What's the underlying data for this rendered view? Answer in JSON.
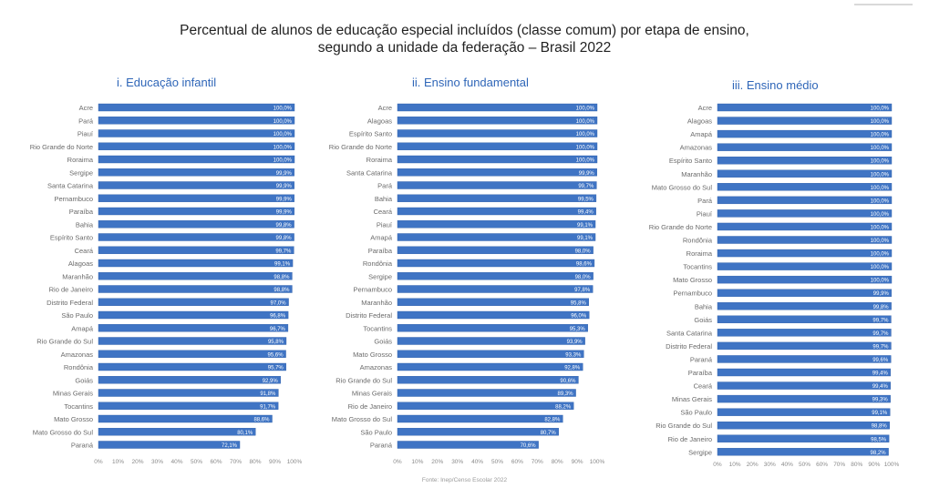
{
  "title_line1": "Percentual de alunos de educação especial incluídos (classe comum) por etapa de ensino,",
  "title_line2": "segundo a unidade da federação – Brasil 2022",
  "source": "Fonte: Inep/Censo Escolar 2022",
  "colors": {
    "bar": "#3f74c4",
    "bar_edge": "#2f5fa8",
    "panel_title": "#2f66b8",
    "label": "#6a6a6a",
    "tick": "#8a8a8a"
  },
  "chart_data": [
    {
      "type": "bar",
      "orientation": "horizontal",
      "title": "i. Educação infantil",
      "categories": [
        "Acre",
        "Pará",
        "Piauí",
        "Rio Grande do Norte",
        "Roraima",
        "Sergipe",
        "Santa Catarina",
        "Pernambuco",
        "Paraíba",
        "Bahia",
        "Espírito Santo",
        "Ceará",
        "Alagoas",
        "Maranhão",
        "Rio de Janeiro",
        "Distrito Federal",
        "São Paulo",
        "Amapá",
        "Rio Grande do Sul",
        "Amazonas",
        "Rondônia",
        "Goiás",
        "Minas Gerais",
        "Tocantins",
        "Mato Grosso",
        "Mato Grosso do Sul",
        "Paraná"
      ],
      "values": [
        100.0,
        100.0,
        100.0,
        100.0,
        100.0,
        99.9,
        99.9,
        99.9,
        99.9,
        99.8,
        99.8,
        99.7,
        99.1,
        98.8,
        98.8,
        97.0,
        96.8,
        96.7,
        95.8,
        95.6,
        95.7,
        92.9,
        91.8,
        91.7,
        88.6,
        80.1,
        72.1
      ],
      "data_labels": [
        "100,0%",
        "100,0%",
        "100,0%",
        "100,0%",
        "100,0%",
        "99,9%",
        "99,9%",
        "99,9%",
        "99,9%",
        "99,8%",
        "99,8%",
        "99,7%",
        "99,1%",
        "98,8%",
        "98,8%",
        "97,0%",
        "96,8%",
        "96,7%",
        "95,8%",
        "95,6%",
        "95,7%",
        "92,9%",
        "91,8%",
        "91,7%",
        "88,6%",
        "80,1%",
        "72,1%"
      ],
      "xlim": [
        0,
        100
      ],
      "xticks": [
        "0%",
        "10%",
        "20%",
        "30%",
        "40%",
        "50%",
        "60%",
        "70%",
        "80%",
        "90%",
        "100%"
      ]
    },
    {
      "type": "bar",
      "orientation": "horizontal",
      "title": "ii. Ensino fundamental",
      "categories": [
        "Acre",
        "Alagoas",
        "Espírito Santo",
        "Rio Grande do Norte",
        "Roraima",
        "Santa Catarina",
        "Pará",
        "Bahia",
        "Ceará",
        "Piauí",
        "Amapá",
        "Paraíba",
        "Rondônia",
        "Sergipe",
        "Pernambuco",
        "Maranhão",
        "Distrito Federal",
        "Tocantins",
        "Goiás",
        "Mato Grosso",
        "Amazonas",
        "Rio Grande do Sul",
        "Minas Gerais",
        "Rio de Janeiro",
        "Mato Grosso do Sul",
        "São Paulo",
        "Paraná"
      ],
      "values": [
        100.0,
        100.0,
        100.0,
        100.0,
        100.0,
        99.9,
        99.7,
        99.5,
        99.4,
        99.1,
        99.1,
        98.0,
        98.6,
        98.0,
        97.8,
        95.8,
        96.0,
        95.3,
        93.9,
        93.3,
        92.8,
        90.6,
        89.3,
        88.2,
        82.8,
        80.7,
        70.6
      ],
      "data_labels": [
        "100,0%",
        "100,0%",
        "100,0%",
        "100,0%",
        "100,0%",
        "99,9%",
        "99,7%",
        "99,5%",
        "99,4%",
        "99,1%",
        "99,1%",
        "98,0%",
        "98,6%",
        "98,0%",
        "97,8%",
        "95,8%",
        "96,0%",
        "95,3%",
        "93,9%",
        "93,3%",
        "92,8%",
        "90,6%",
        "89,3%",
        "88,2%",
        "82,8%",
        "80,7%",
        "70,6%"
      ],
      "xlim": [
        0,
        100
      ],
      "xticks": [
        "0%",
        "10%",
        "20%",
        "30%",
        "40%",
        "50%",
        "60%",
        "70%",
        "80%",
        "90%",
        "100%"
      ]
    },
    {
      "type": "bar",
      "orientation": "horizontal",
      "title": "iii. Ensino médio",
      "categories": [
        "Acre",
        "Alagoas",
        "Amapá",
        "Amazonas",
        "Espírito Santo",
        "Maranhão",
        "Mato Grosso do Sul",
        "Pará",
        "Piauí",
        "Rio Grande do Norte",
        "Rondônia",
        "Roraima",
        "Tocantins",
        "Mato Grosso",
        "Pernambuco",
        "Bahia",
        "Goiás",
        "Santa Catarina",
        "Distrito Federal",
        "Paraná",
        "Paraíba",
        "Ceará",
        "Minas Gerais",
        "São Paulo",
        "Rio Grande do Sul",
        "Rio de Janeiro",
        "Sergipe"
      ],
      "values": [
        100.0,
        100.0,
        100.0,
        100.0,
        100.0,
        100.0,
        100.0,
        100.0,
        100.0,
        100.0,
        100.0,
        100.0,
        100.0,
        100.0,
        99.9,
        99.8,
        99.7,
        99.7,
        99.7,
        99.6,
        99.4,
        99.4,
        99.3,
        99.1,
        98.8,
        98.5,
        98.2
      ],
      "data_labels": [
        "100,0%",
        "100,0%",
        "100,0%",
        "100,0%",
        "100,0%",
        "100,0%",
        "100,0%",
        "100,0%",
        "100,0%",
        "100,0%",
        "100,0%",
        "100,0%",
        "100,0%",
        "100,0%",
        "99,9%",
        "99,8%",
        "99,7%",
        "99,7%",
        "99,7%",
        "99,6%",
        "99,4%",
        "99,4%",
        "99,3%",
        "99,1%",
        "98,8%",
        "98,5%",
        "98,2%"
      ],
      "xlim": [
        0,
        100
      ],
      "xticks": [
        "0%",
        "10%",
        "20%",
        "30%",
        "40%",
        "50%",
        "60%",
        "70%",
        "80%",
        "90%",
        "100%"
      ]
    }
  ]
}
